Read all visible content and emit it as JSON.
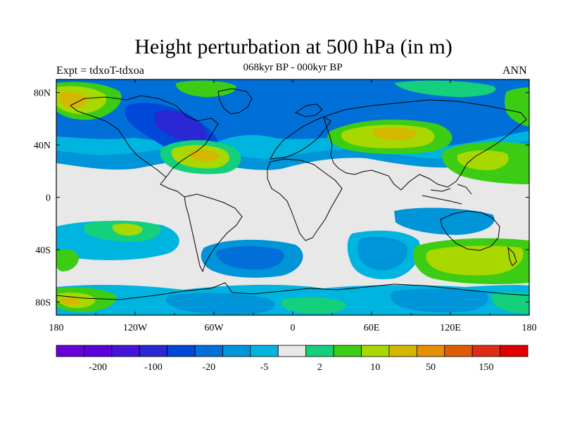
{
  "title": "Height perturbation at 500 hPa (in m)",
  "subtitle": "068kyr BP - 000kyr BP",
  "experiment": "Expt = tdxoT-tdxoa",
  "season": "ANN",
  "map": {
    "lon_ticks": [
      "180",
      "120W",
      "60W",
      "0",
      "60E",
      "120E",
      "180"
    ],
    "lat_ticks": [
      "80N",
      "40N",
      "0",
      "40S",
      "80S"
    ],
    "lon_values": [
      -180,
      -120,
      -60,
      0,
      60,
      120,
      180
    ],
    "lat_values": [
      80,
      40,
      0,
      -40,
      -80
    ],
    "lon_range": [
      -180,
      180
    ],
    "lat_range": [
      -90,
      90
    ]
  },
  "colorbar": {
    "colors": [
      "#6a00d8",
      "#5a00d8",
      "#4414d8",
      "#2a28d4",
      "#0048d8",
      "#0070d8",
      "#0094d8",
      "#00b4e0",
      "#e8e8e8",
      "#14d07c",
      "#3ccc14",
      "#a8d800",
      "#d4b800",
      "#e49000",
      "#e05c00",
      "#e02c14",
      "#e00000"
    ],
    "labels": [
      "-200",
      "-100",
      "-20",
      "-5",
      "2",
      "10",
      "50",
      "150"
    ]
  }
}
